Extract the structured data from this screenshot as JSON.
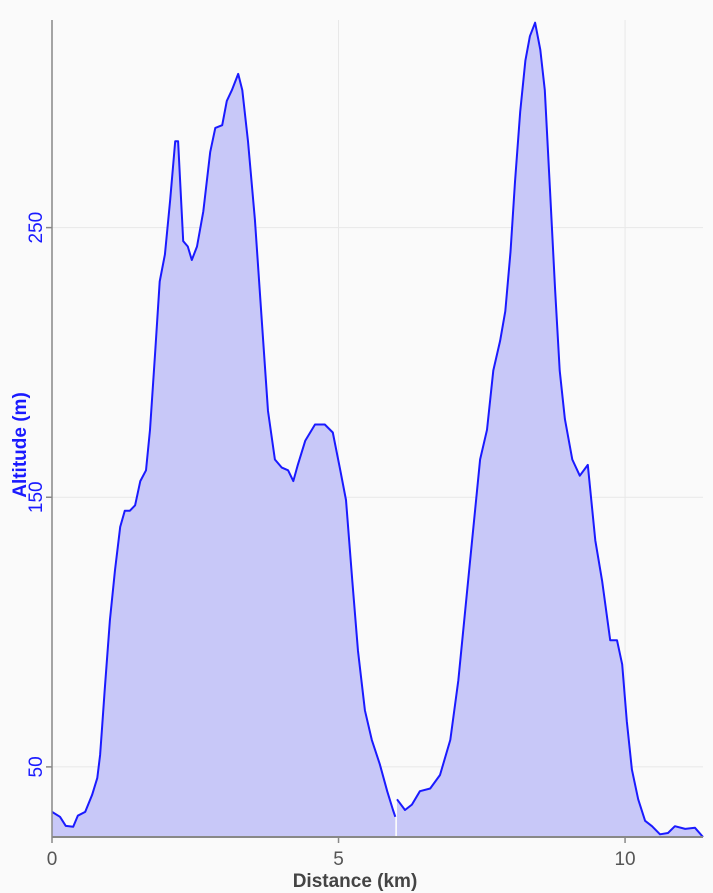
{
  "chart_data": {
    "type": "area",
    "title": "",
    "xlabel": "Distance (km)",
    "ylabel": "Altitude (m)",
    "xlim": [
      0,
      11.36
    ],
    "ylim": [
      24,
      327
    ],
    "xticks": [
      0,
      5,
      10
    ],
    "yticks": [
      50,
      150,
      250
    ],
    "grid": true,
    "colors": {
      "line": "#1a1aff",
      "fill": "#c8c8f8",
      "ylabel": "#1a1aff",
      "grid": "#e8e8e8",
      "axis": "#888888"
    },
    "series": [
      {
        "x": [
          0,
          0.14,
          0.24,
          0.37,
          0.45,
          0.58,
          0.7,
          0.79,
          0.84,
          0.87,
          0.92,
          1.01,
          1.1,
          1.19,
          1.27,
          1.36,
          1.45,
          1.54,
          1.64,
          1.71,
          1.8,
          1.88,
          1.97,
          2.06,
          2.15,
          2.2,
          2.29,
          2.37,
          2.44,
          2.53,
          2.64,
          2.76,
          2.85,
          2.97,
          3.05,
          3.14,
          3.25,
          3.32,
          3.42,
          3.54,
          3.66,
          3.77,
          3.89,
          4.01,
          4.12,
          4.21,
          4.29,
          4.42,
          4.59,
          4.76,
          4.9,
          5.03,
          5.13,
          5.24,
          5.34,
          5.46,
          5.58,
          5.72,
          5.85,
          5.95,
          5.99
        ],
        "y": [
          33.3,
          31.5,
          28.1,
          27.8,
          31.9,
          33.3,
          39.6,
          45.9,
          54.4,
          63.7,
          78.5,
          104.4,
          123,
          139,
          145,
          145,
          147,
          156,
          160,
          175,
          204,
          230,
          240,
          260,
          282,
          282,
          245,
          243,
          238,
          243,
          256,
          278,
          287,
          288,
          297,
          301,
          307,
          301,
          282,
          253,
          216,
          182,
          164,
          161,
          160,
          156,
          162,
          171,
          177,
          177,
          174,
          160,
          149,
          119,
          93,
          71,
          60,
          51,
          41,
          34,
          31.5
        ]
      },
      {
        "x": [
          6.02,
          6.16,
          6.28,
          6.42,
          6.6,
          6.77,
          6.95,
          7.09,
          7.21,
          7.33,
          7.47,
          7.59,
          7.7,
          7.82,
          7.91,
          8.0,
          8.08,
          8.17,
          8.26,
          8.34,
          8.43,
          8.52,
          8.6,
          8.69,
          8.78,
          8.86,
          8.95,
          9.08,
          9.21,
          9.35,
          9.48,
          9.6,
          9.74,
          9.86,
          9.95,
          10.03,
          10.12,
          10.23,
          10.35,
          10.47,
          10.61,
          10.75,
          10.87,
          11.05,
          11.22,
          11.36
        ],
        "y": [
          38,
          34,
          36,
          41,
          42,
          47,
          60,
          82,
          108,
          134,
          164,
          175,
          197,
          208,
          219,
          241,
          267,
          293,
          312,
          321,
          326,
          316,
          301,
          264,
          227,
          197,
          179,
          164,
          158,
          162,
          134,
          119,
          97,
          97,
          88,
          67,
          49,
          38,
          30,
          28,
          25,
          25.5,
          28,
          27,
          27.4,
          24
        ]
      }
    ]
  }
}
